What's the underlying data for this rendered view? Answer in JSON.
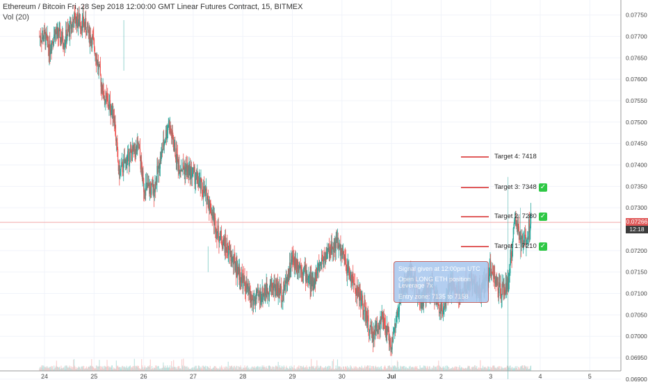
{
  "header": {
    "title": "Ethereum / Bitcoin Fri, 28 Sep 2018 12:00:00 GMT Linear Futures Contract, 15, BITMEX",
    "volume_label": "Vol (20)"
  },
  "price_tags": {
    "last_price": "0.07266",
    "countdown": "12:18"
  },
  "targets": [
    {
      "label": "Target 4:  7418",
      "price": 0.07418,
      "hit": false
    },
    {
      "label": "Target 3:  7348",
      "price": 0.07348,
      "hit": true
    },
    {
      "label": "Target 2:  7280",
      "price": 0.0728,
      "hit": true
    },
    {
      "label": "Target 1:  7210",
      "price": 0.0721,
      "hit": true
    }
  ],
  "signal_box": {
    "line1": "Signal given at 12:00pm UTC",
    "line2": "Open LONG ETH position",
    "line3": "Leverage 7x",
    "line4": "Entry zone: 7135 to 7158"
  },
  "check_glyph": "✓",
  "colors": {
    "up": "#26a69a",
    "down": "#ef5350",
    "target_line": "#e05a5a",
    "check": "#2ec845",
    "signal_box": "#a9c8ee",
    "last_price_tag": "#e05a5a",
    "countdown_tag": "#3c3c3c"
  },
  "chart_data": {
    "type": "candlestick",
    "title": "Ethereum / Bitcoin Fri, 28 Sep 2018 12:00:00 GMT Linear Futures Contract, 15, BITMEX",
    "x_ticks": [
      "24",
      "25",
      "26",
      "27",
      "28",
      "29",
      "30",
      "Jul",
      "2",
      "3",
      "4",
      "5"
    ],
    "y_ticks": [
      "0.07750",
      "0.07700",
      "0.07650",
      "0.07600",
      "0.07550",
      "0.07500",
      "0.07450",
      "0.07400",
      "0.07350",
      "0.07300",
      "0.07250",
      "0.07200",
      "0.07150",
      "0.07100",
      "0.07050",
      "0.07000",
      "0.06950",
      "0.06900"
    ],
    "ylim": [
      0.06895,
      0.07785
    ],
    "last_price": 0.07266,
    "close_path": [
      {
        "x": 24.0,
        "y": 0.077
      },
      {
        "x": 24.1,
        "y": 0.0767
      },
      {
        "x": 24.2,
        "y": 0.0771
      },
      {
        "x": 24.4,
        "y": 0.0769
      },
      {
        "x": 24.6,
        "y": 0.0774
      },
      {
        "x": 24.8,
        "y": 0.0773
      },
      {
        "x": 25.0,
        "y": 0.0768
      },
      {
        "x": 25.2,
        "y": 0.0756
      },
      {
        "x": 25.4,
        "y": 0.0752
      },
      {
        "x": 25.5,
        "y": 0.0738
      },
      {
        "x": 25.7,
        "y": 0.0742
      },
      {
        "x": 25.9,
        "y": 0.0744
      },
      {
        "x": 26.0,
        "y": 0.0735
      },
      {
        "x": 26.2,
        "y": 0.0734
      },
      {
        "x": 26.5,
        "y": 0.075
      },
      {
        "x": 26.7,
        "y": 0.074
      },
      {
        "x": 27.0,
        "y": 0.0738
      },
      {
        "x": 27.3,
        "y": 0.0732
      },
      {
        "x": 27.5,
        "y": 0.0724
      },
      {
        "x": 27.7,
        "y": 0.072
      },
      {
        "x": 28.0,
        "y": 0.0713
      },
      {
        "x": 28.2,
        "y": 0.0708
      },
      {
        "x": 28.4,
        "y": 0.071
      },
      {
        "x": 28.6,
        "y": 0.0712
      },
      {
        "x": 28.8,
        "y": 0.071
      },
      {
        "x": 29.0,
        "y": 0.0718
      },
      {
        "x": 29.2,
        "y": 0.0716
      },
      {
        "x": 29.4,
        "y": 0.0712
      },
      {
        "x": 29.6,
        "y": 0.0718
      },
      {
        "x": 29.9,
        "y": 0.0722
      },
      {
        "x": 30.1,
        "y": 0.0716
      },
      {
        "x": 30.4,
        "y": 0.0708
      },
      {
        "x": 30.6,
        "y": 0.07
      },
      {
        "x": 30.8,
        "y": 0.0704
      },
      {
        "x": 31.0,
        "y": 0.0698
      },
      {
        "x": 31.2,
        "y": 0.071
      },
      {
        "x": 31.4,
        "y": 0.0715
      },
      {
        "x": 31.6,
        "y": 0.0708
      },
      {
        "x": 31.8,
        "y": 0.0712
      },
      {
        "x": 32.0,
        "y": 0.0706
      },
      {
        "x": 32.2,
        "y": 0.0712
      },
      {
        "x": 32.4,
        "y": 0.071
      },
      {
        "x": 32.6,
        "y": 0.0713
      },
      {
        "x": 32.8,
        "y": 0.071
      },
      {
        "x": 33.0,
        "y": 0.0716
      },
      {
        "x": 33.2,
        "y": 0.071
      },
      {
        "x": 33.35,
        "y": 0.0712
      },
      {
        "x": 33.5,
        "y": 0.0728
      },
      {
        "x": 33.6,
        "y": 0.0722
      },
      {
        "x": 33.7,
        "y": 0.0722
      },
      {
        "x": 33.8,
        "y": 0.0727
      }
    ]
  }
}
